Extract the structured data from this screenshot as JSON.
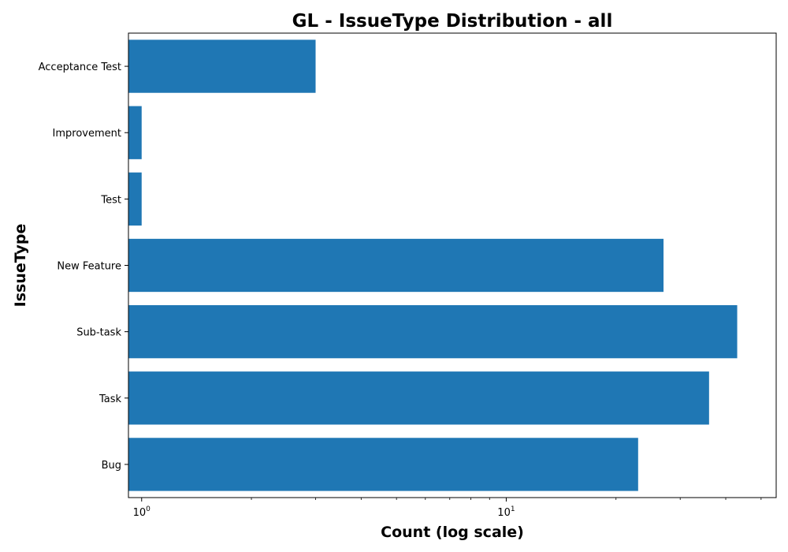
{
  "chart_data": {
    "type": "bar",
    "orientation": "horizontal",
    "title": "GL - IssueType Distribution - all",
    "xlabel": "Count (log scale)",
    "ylabel": "IssueType",
    "x_scale": "log",
    "xlim": [
      0.92,
      55
    ],
    "x_ticks": [
      {
        "value": 1,
        "base": "10",
        "exp": "0"
      },
      {
        "value": 10,
        "base": "10",
        "exp": "1"
      }
    ],
    "categories": [
      "Acceptance Test",
      "Improvement",
      "Test",
      "New Feature",
      "Sub-task",
      "Task",
      "Bug"
    ],
    "values": [
      3,
      1,
      1,
      27,
      43,
      36,
      23
    ],
    "bar_color": "#1f77b4",
    "grid": false,
    "legend": "none"
  }
}
